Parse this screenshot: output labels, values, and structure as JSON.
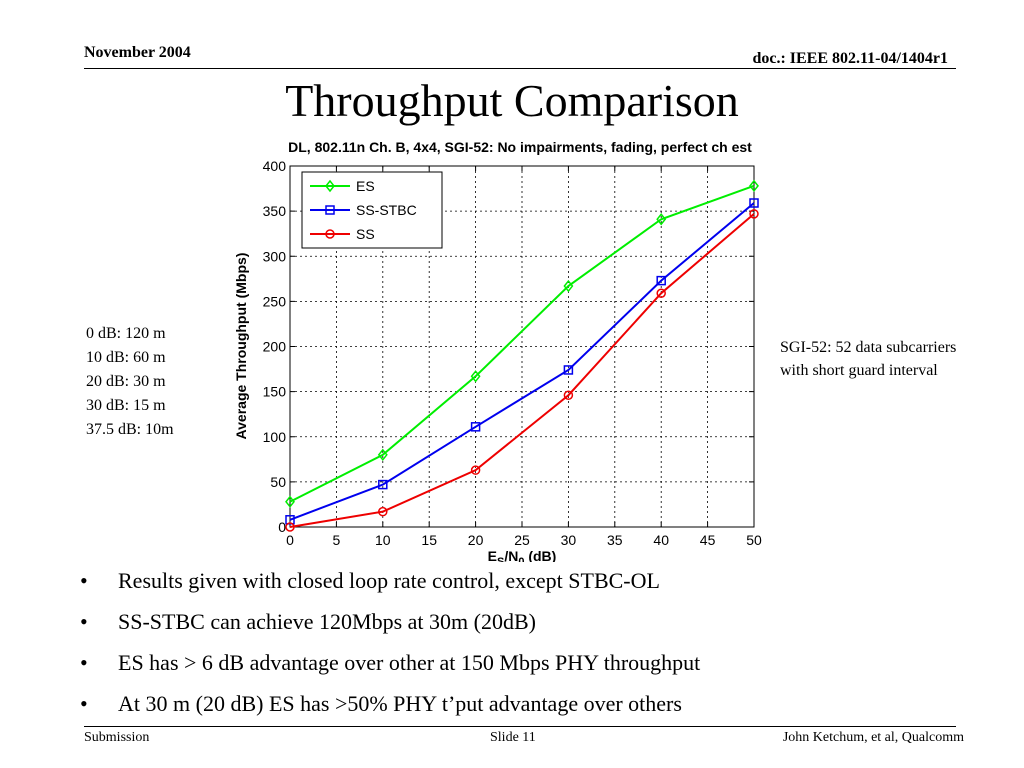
{
  "header": {
    "date": "November 2004",
    "doc": "doc.: IEEE 802.11-04/1404r1"
  },
  "slide_title": "Throughput Comparison",
  "left_note": [
    "0 dB:  120 m",
    "10 dB:  60 m",
    "20 dB:  30 m",
    "30 dB:  15 m",
    "37.5 dB:  10m"
  ],
  "right_note": "SGI-52: 52 data subcarriers with short guard interval",
  "bullets": [
    "Results given with closed loop rate control, except STBC-OL",
    "SS-STBC can achieve 120Mbps at 30m (20dB)",
    "ES has > 6 dB advantage over other at 150 Mbps PHY throughput",
    "At 30 m (20 dB) ES has >50% PHY t’put advantage over others"
  ],
  "footer": {
    "left": "Submission",
    "center": "Slide 11",
    "right": "John Ketchum, et al, Qualcomm"
  },
  "chart_data": {
    "type": "line",
    "title": "DL, 802.11n Ch. B, 4x4, SGI-52: No impairments, fading, perfect ch est",
    "xlabel": "E",
    "xlabel_sub1": "S",
    "xlabel_mid": "/N",
    "xlabel_sub2": "0",
    "xlabel_tail": " (dB)",
    "ylabel": "Average Throughput (Mbps)",
    "xlim": [
      0,
      50
    ],
    "ylim": [
      0,
      400
    ],
    "xticks": [
      0,
      5,
      10,
      15,
      20,
      25,
      30,
      35,
      40,
      45,
      50
    ],
    "yticks": [
      0,
      50,
      100,
      150,
      200,
      250,
      300,
      350,
      400
    ],
    "grid": true,
    "legend_position": "top-left",
    "series": [
      {
        "name": "ES",
        "color": "#00ee00",
        "marker": "diamond",
        "x": [
          0,
          10,
          20,
          30,
          40,
          50
        ],
        "y": [
          28,
          80,
          167,
          267,
          341,
          378
        ]
      },
      {
        "name": "SS-STBC",
        "color": "#0000ee",
        "marker": "square",
        "x": [
          0,
          10,
          20,
          30,
          40,
          50
        ],
        "y": [
          8,
          47,
          111,
          174,
          273,
          359
        ]
      },
      {
        "name": "SS",
        "color": "#ee0000",
        "marker": "circle",
        "x": [
          0,
          10,
          20,
          30,
          40,
          50
        ],
        "y": [
          0,
          17,
          63,
          146,
          259,
          347
        ]
      }
    ]
  }
}
